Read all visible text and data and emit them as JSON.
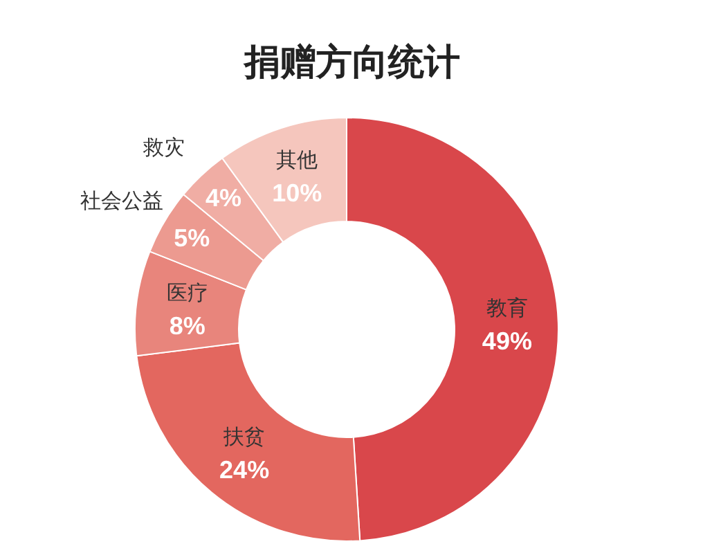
{
  "chart_data": {
    "type": "donut",
    "title": "捐赠方向统计",
    "categories": [
      "教育",
      "扶贫",
      "医疗",
      "社会公益",
      "救灾",
      "其他"
    ],
    "values": [
      49,
      24,
      8,
      5,
      4,
      10
    ],
    "value_labels": [
      "49%",
      "24%",
      "8%",
      "5%",
      "4%",
      "10%"
    ],
    "colors": [
      "#d9474b",
      "#e3675f",
      "#e8857c",
      "#ec9a90",
      "#f0ada4",
      "#f5c6bd"
    ]
  }
}
